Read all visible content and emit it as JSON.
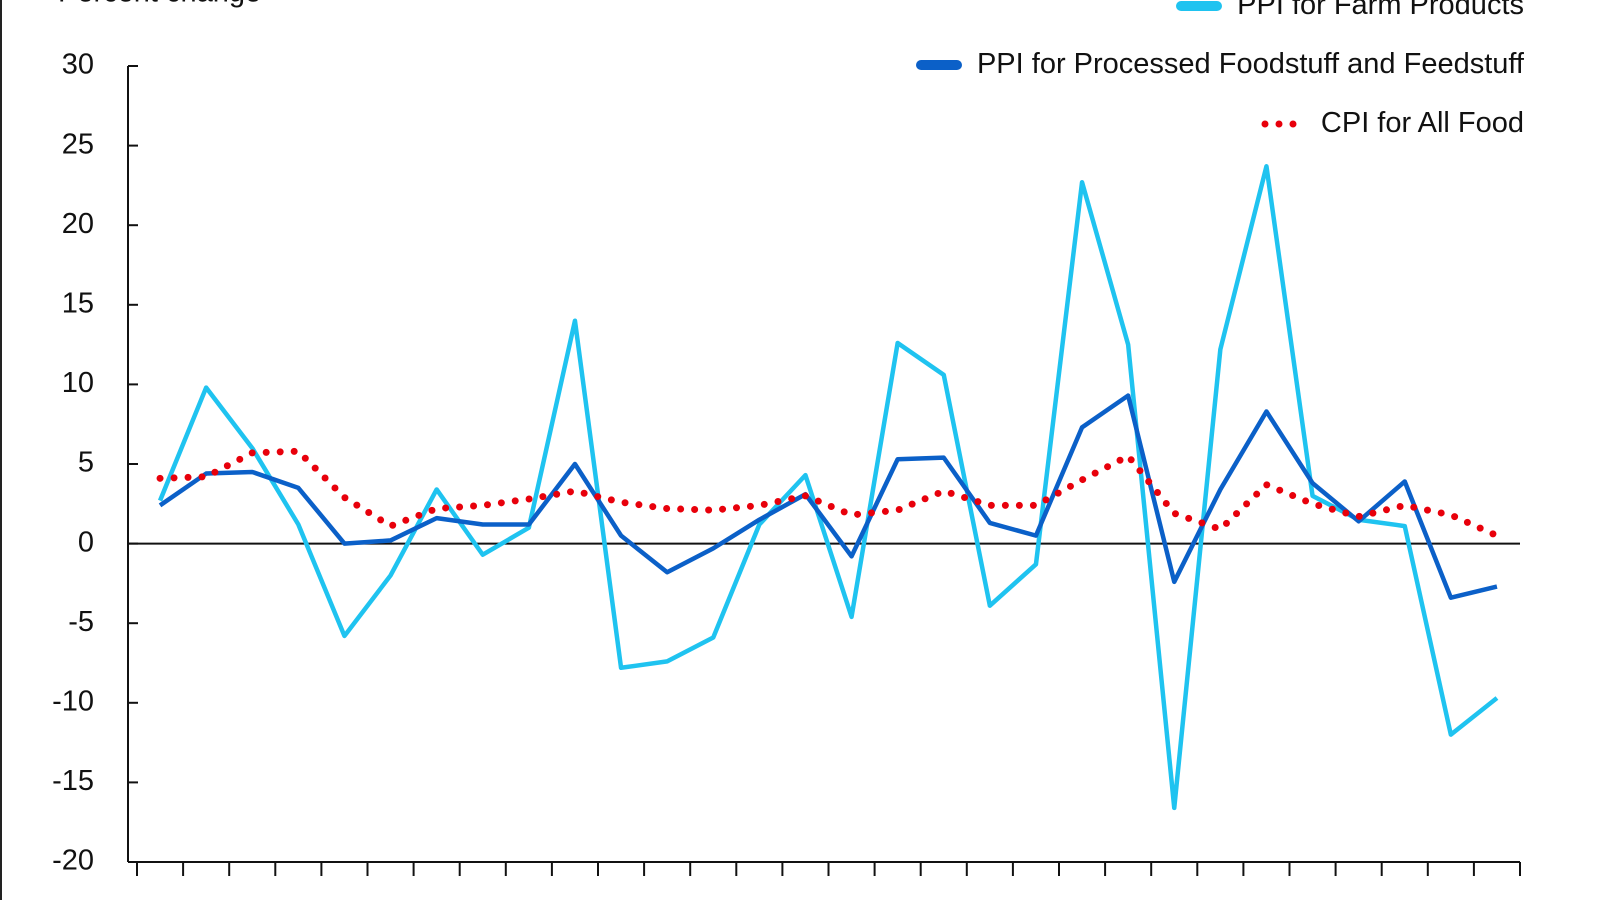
{
  "chart_data": {
    "type": "line",
    "title": "Percent change",
    "categories": [
      null,
      null,
      null,
      null,
      null,
      null,
      null,
      null,
      null,
      null,
      null,
      null,
      null,
      null,
      null,
      null,
      null,
      null,
      null,
      null,
      null,
      null,
      null,
      null,
      null,
      null,
      null,
      null,
      null,
      null
    ],
    "series": [
      {
        "name": "PPI for Farm Products",
        "color": "#1fc3f0",
        "style": "solid",
        "values": [
          2.7,
          9.8,
          6.0,
          1.2,
          -5.8,
          -2.0,
          3.4,
          -0.7,
          1.0,
          14.0,
          -7.8,
          -7.4,
          -5.9,
          1.2,
          4.3,
          -4.6,
          12.6,
          10.6,
          -3.9,
          -1.3,
          22.7,
          12.5,
          -16.6,
          12.2,
          23.7,
          3.0,
          1.5,
          1.1,
          -12.0,
          -9.7
        ]
      },
      {
        "name": "PPI for Processed Foodstuff and Feedstuff",
        "color": "#0b60c8",
        "style": "solid",
        "values": [
          2.4,
          4.4,
          4.5,
          3.5,
          0.0,
          0.2,
          1.6,
          1.2,
          1.2,
          5.0,
          0.5,
          -1.8,
          -0.3,
          1.5,
          3.1,
          -0.8,
          5.3,
          5.4,
          1.3,
          0.5,
          7.3,
          9.3,
          -2.4,
          3.4,
          8.3,
          3.8,
          1.4,
          3.9,
          -3.4,
          -2.7
        ]
      },
      {
        "name": "CPI for All Food",
        "color": "#e8000b",
        "style": "dotted",
        "values": [
          4.1,
          4.2,
          5.7,
          5.8,
          2.9,
          1.1,
          2.2,
          2.4,
          2.8,
          3.3,
          2.6,
          2.2,
          2.1,
          2.4,
          3.0,
          1.8,
          2.1,
          3.3,
          2.4,
          2.4,
          4.0,
          5.5,
          1.9,
          0.9,
          3.7,
          2.5,
          1.7,
          2.4,
          1.8,
          0.5
        ]
      }
    ],
    "ylim": [
      -20,
      30
    ],
    "yticks": [
      -20,
      -15,
      -10,
      -5,
      0,
      5,
      10,
      15,
      20,
      25,
      30
    ],
    "legend": "top-right"
  }
}
